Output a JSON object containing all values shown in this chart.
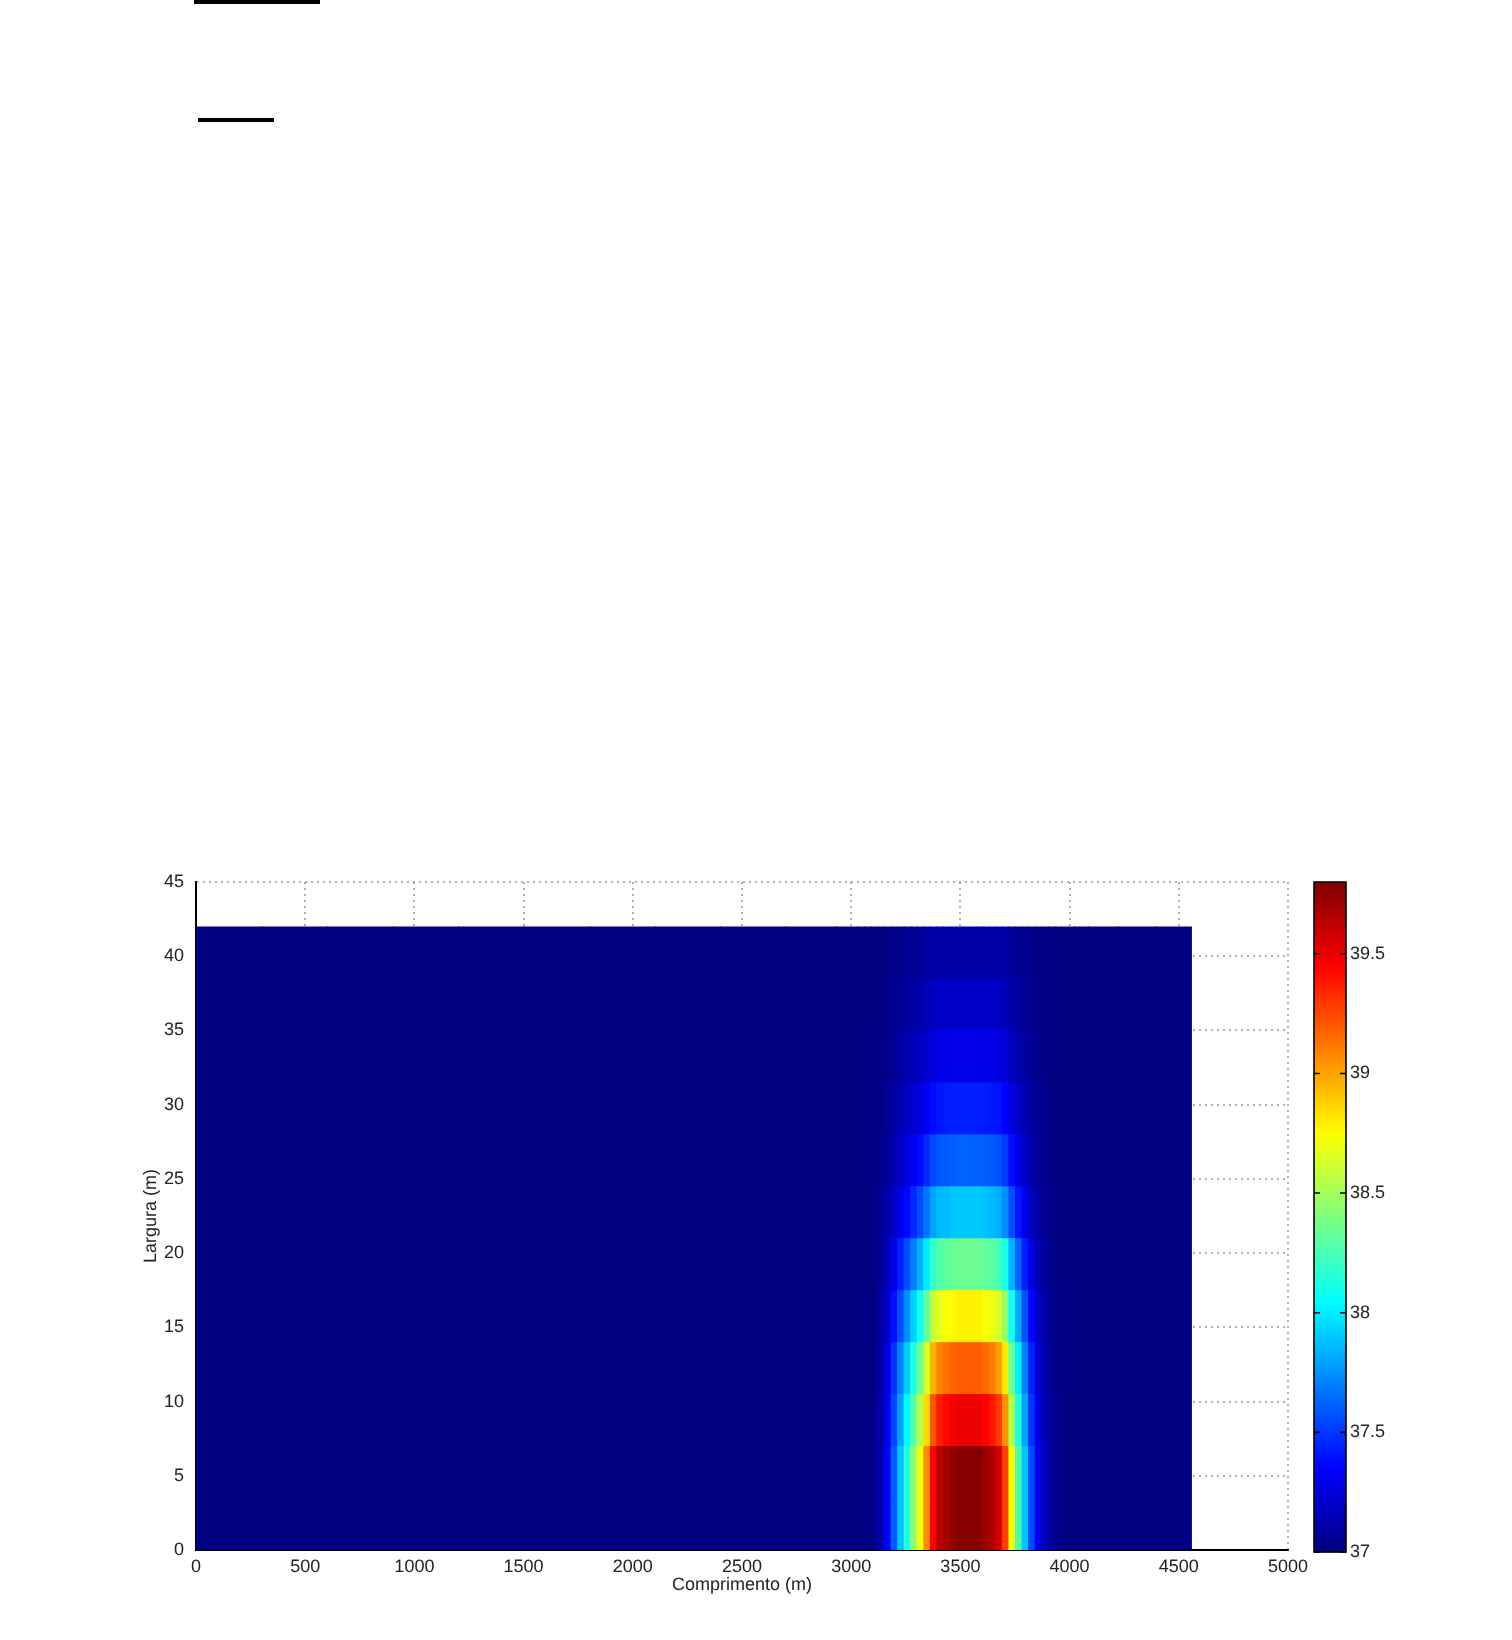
{
  "chart_data": {
    "type": "heatmap",
    "xlabel": "Comprimento (m)",
    "ylabel": "Largura (m)",
    "x": [
      150,
      450,
      750,
      1050,
      1350,
      1650,
      1950,
      2250,
      2550,
      2850,
      3015,
      3045,
      3075,
      3105,
      3135,
      3165,
      3195,
      3225,
      3255,
      3285,
      3315,
      3345,
      3375,
      3405,
      3435,
      3465,
      3495,
      3525,
      3555,
      3585,
      3615,
      3645,
      3675,
      3705,
      3735,
      3765,
      3795,
      3825,
      3855,
      3885,
      3915,
      3945,
      3975,
      4005,
      4035,
      4135,
      4305,
      4475
    ],
    "y": [
      40.25,
      36.75,
      33.25,
      29.75,
      26.25,
      22.75,
      19.25,
      15.75,
      12.25,
      8.75,
      5.25,
      1.75
    ],
    "cells": [
      [
        37,
        37,
        37,
        37,
        37,
        37,
        37,
        37,
        37,
        37,
        37,
        37,
        37,
        37,
        37.01,
        37.01,
        37.03,
        37.04,
        37.05,
        37.06,
        37.07,
        37.09,
        37.11,
        37.11,
        37.12,
        37.12,
        37.12,
        37.12,
        37.12,
        37.12,
        37.12,
        37.12,
        37.11,
        37.1,
        37.07,
        37.06,
        37.04,
        37.02,
        37.01,
        37.01,
        37,
        37,
        37,
        37,
        37,
        37,
        37,
        37
      ],
      [
        37,
        37,
        37,
        37,
        37,
        37,
        37,
        37,
        37,
        37,
        37,
        37,
        37,
        37,
        37.01,
        37.02,
        37.04,
        37.06,
        37.08,
        37.1,
        37.12,
        37.15,
        37.18,
        37.19,
        37.19,
        37.2,
        37.2,
        37.2,
        37.2,
        37.2,
        37.2,
        37.19,
        37.18,
        37.16,
        37.12,
        37.09,
        37.06,
        37.04,
        37.02,
        37.01,
        37.01,
        37,
        37,
        37,
        37,
        37,
        37,
        37
      ],
      [
        37,
        37,
        37,
        37,
        37,
        37,
        37,
        37,
        37,
        37,
        37,
        37,
        37,
        37,
        37.02,
        37.03,
        37.06,
        37.09,
        37.12,
        37.15,
        37.18,
        37.21,
        37.26,
        37.28,
        37.28,
        37.29,
        37.29,
        37.29,
        37.29,
        37.29,
        37.28,
        37.28,
        37.27,
        37.24,
        37.18,
        37.13,
        37.09,
        37.06,
        37.03,
        37.02,
        37.01,
        37,
        37,
        37,
        37,
        37,
        37,
        37
      ],
      [
        37,
        37,
        37,
        37,
        37,
        37,
        37,
        37,
        37,
        37,
        37,
        37,
        37,
        37,
        37.02,
        37.05,
        37.09,
        37.14,
        37.18,
        37.22,
        37.26,
        37.32,
        37.38,
        37.41,
        37.42,
        37.43,
        37.43,
        37.43,
        37.43,
        37.43,
        37.42,
        37.41,
        37.4,
        37.35,
        37.27,
        37.2,
        37.14,
        37.09,
        37.05,
        37.03,
        37.01,
        37,
        37,
        37,
        37,
        37,
        37,
        37
      ],
      [
        37,
        37,
        37,
        37,
        37,
        37,
        37,
        37,
        37,
        37,
        37,
        37,
        37,
        37.01,
        37.03,
        37.07,
        37.13,
        37.2,
        37.26,
        37.32,
        37.38,
        37.46,
        37.55,
        37.59,
        37.6,
        37.61,
        37.62,
        37.62,
        37.62,
        37.62,
        37.61,
        37.6,
        37.57,
        37.51,
        37.38,
        37.29,
        37.2,
        37.12,
        37.07,
        37.04,
        37.02,
        37.01,
        37,
        37,
        37,
        37,
        37,
        37
      ],
      [
        37,
        37,
        37,
        37,
        37,
        37,
        37,
        37,
        37,
        37,
        37,
        37,
        37,
        37.01,
        37.05,
        37.11,
        37.2,
        37.28,
        37.37,
        37.46,
        37.55,
        37.67,
        37.8,
        37.86,
        37.87,
        37.89,
        37.9,
        37.9,
        37.9,
        37.9,
        37.88,
        37.86,
        37.83,
        37.74,
        37.56,
        37.41,
        37.29,
        37.18,
        37.1,
        37.05,
        37.03,
        37.01,
        37,
        37,
        37,
        37,
        37,
        37
      ],
      [
        37,
        37,
        37,
        37,
        37,
        37,
        37,
        37,
        37,
        37,
        37,
        37,
        37,
        37.01,
        37.07,
        37.16,
        37.29,
        37.43,
        37.56,
        37.7,
        37.83,
        38,
        38.19,
        38.28,
        38.31,
        38.34,
        38.35,
        38.35,
        38.35,
        38.35,
        38.32,
        38.3,
        38.24,
        38.11,
        37.84,
        37.62,
        37.43,
        37.27,
        37.15,
        37.08,
        37.04,
        37.01,
        37,
        37,
        37,
        37,
        37,
        37
      ],
      [
        37,
        37,
        37,
        37,
        37,
        37,
        37,
        37,
        37,
        37,
        37,
        37,
        37,
        37.02,
        37.09,
        37.21,
        37.39,
        37.56,
        37.74,
        37.92,
        38.09,
        38.32,
        38.58,
        38.69,
        38.73,
        38.76,
        38.78,
        38.78,
        38.78,
        38.78,
        38.74,
        38.71,
        38.64,
        38.46,
        38.1,
        37.82,
        37.57,
        37.36,
        37.2,
        37.11,
        37.05,
        37.02,
        37,
        37,
        37,
        37,
        37,
        37
      ],
      [
        37,
        37,
        37,
        37,
        37,
        37,
        37,
        37,
        37,
        37,
        37,
        37,
        37,
        37.02,
        37.11,
        37.26,
        37.48,
        37.7,
        37.91,
        38.13,
        38.35,
        38.63,
        38.95,
        39.09,
        39.13,
        39.18,
        39.2,
        39.2,
        39.2,
        39.2,
        39.16,
        39.11,
        39.02,
        38.8,
        38.36,
        38.01,
        37.7,
        37.44,
        37.24,
        37.13,
        37.07,
        37.02,
        37,
        37,
        37,
        37,
        37,
        37
      ],
      [
        37,
        37,
        37,
        37,
        37,
        37,
        37,
        37,
        37,
        37,
        37,
        37,
        37,
        37.03,
        37.13,
        37.3,
        37.54,
        37.79,
        38.04,
        38.29,
        38.54,
        38.85,
        39.21,
        39.38,
        39.43,
        39.48,
        39.5,
        39.5,
        39.5,
        39.5,
        39.45,
        39.4,
        39.3,
        39.05,
        38.55,
        38.15,
        37.8,
        37.5,
        37.28,
        37.15,
        37.08,
        37.03,
        37,
        37,
        37,
        37,
        37,
        37
      ],
      [
        37,
        37,
        37,
        37,
        37,
        37,
        37,
        37,
        37,
        37,
        37,
        37,
        37,
        37.03,
        37.14,
        37.33,
        37.6,
        37.88,
        38.15,
        38.43,
        38.71,
        39.06,
        39.46,
        39.64,
        39.7,
        39.75,
        39.78,
        39.78,
        39.78,
        39.78,
        39.72,
        39.67,
        39.56,
        39.28,
        38.72,
        38.28,
        37.89,
        37.56,
        37.31,
        37.17,
        37.08,
        37.03,
        37,
        37,
        37,
        37,
        37,
        37
      ],
      [
        37,
        37,
        37,
        37,
        37,
        37,
        37,
        37,
        37,
        37,
        37,
        37,
        37,
        37.03,
        37.14,
        37.33,
        37.6,
        37.88,
        38.15,
        38.43,
        38.71,
        39.06,
        39.46,
        39.64,
        39.7,
        39.75,
        39.78,
        39.78,
        39.78,
        39.78,
        39.72,
        39.67,
        39.56,
        39.28,
        38.72,
        38.28,
        37.89,
        37.56,
        37.31,
        37.17,
        37.08,
        37.03,
        37,
        37,
        37,
        37,
        37,
        37
      ]
    ],
    "xlim": [
      0,
      5000
    ],
    "ylim": [
      0,
      45
    ],
    "xticks": [
      0,
      500,
      1000,
      1500,
      2000,
      2500,
      3000,
      3500,
      4000,
      4500,
      5000
    ],
    "yticks": [
      0,
      5,
      10,
      15,
      20,
      25,
      30,
      35,
      40,
      45
    ],
    "clim": [
      37,
      39.8
    ],
    "cticks": [
      37,
      37.5,
      38,
      38.5,
      39,
      39.5
    ],
    "grid": true
  }
}
